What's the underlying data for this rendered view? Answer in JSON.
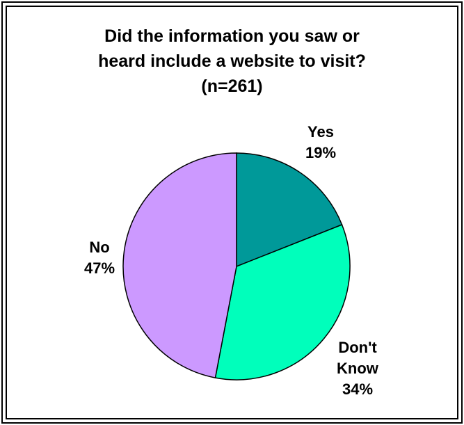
{
  "chart_data": {
    "type": "pie",
    "title": "Did the information you saw or heard include a website to visit? (n=261)",
    "title_lines": [
      "Did the information you saw or",
      "heard include a website to visit?",
      "(n=261)"
    ],
    "slices": [
      {
        "name": "Yes",
        "value": 19,
        "label": "19%",
        "color": "#009999"
      },
      {
        "name": "Don't Know",
        "name_lines": [
          "Don't",
          "Know"
        ],
        "value": 34,
        "label": "34%",
        "color": "#00FFBB"
      },
      {
        "name": "No",
        "value": 47,
        "label": "47%",
        "color": "#CC99FF"
      }
    ],
    "start_angle_deg": 0,
    "direction": "clockwise",
    "legend": "none",
    "grid": false
  }
}
